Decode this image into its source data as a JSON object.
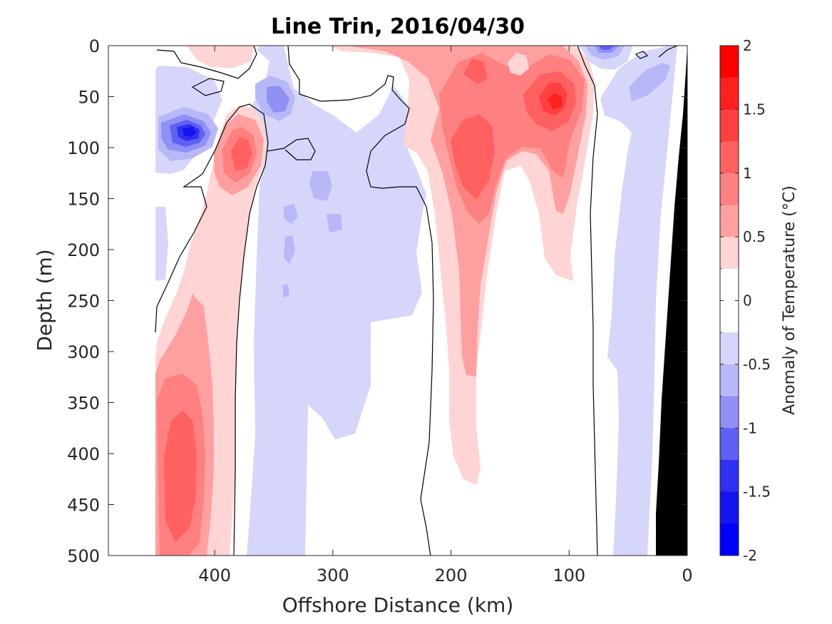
{
  "chart_data": {
    "type": "heatmap",
    "subtype": "filled-contour-section",
    "title": "Line Trin, 2016/04/30",
    "xlabel": "Offshore Distance (km)",
    "ylabel": "Depth (m)",
    "xlim": [
      490,
      0
    ],
    "ylim": [
      0,
      500
    ],
    "x_reversed": true,
    "y_reversed": true,
    "xticks": [
      400,
      300,
      200,
      100,
      0
    ],
    "yticks": [
      0,
      50,
      100,
      150,
      200,
      250,
      300,
      350,
      400,
      450,
      500
    ],
    "xtick_labels": [
      "400",
      "300",
      "200",
      "100",
      "0"
    ],
    "ytick_labels": [
      "0",
      "50",
      "100",
      "150",
      "200",
      "250",
      "300",
      "350",
      "400",
      "450",
      "500"
    ],
    "data_x_range": [
      0,
      452
    ],
    "colorbar": {
      "label": "Anomaly of Temperature (°C)",
      "range": [
        -2,
        2
      ],
      "step": 0.25,
      "ticks": [
        2,
        1.5,
        1,
        0.5,
        0,
        -0.5,
        -1,
        -1.5,
        -2
      ],
      "tick_labels": [
        "2",
        "1.5",
        "1",
        "0.5",
        "0",
        "-0.5",
        "-1",
        "-1.5",
        "-2"
      ],
      "colors_top_to_bottom": [
        "#ff0000",
        "#ff2020",
        "#ff4040",
        "#ff6060",
        "#ff8080",
        "#ffa0a0",
        "#ffd4d4",
        "#ffffff",
        "#ffffff",
        "#d6d6fb",
        "#b8b8f8",
        "#9090f5",
        "#6060f3",
        "#3030f0",
        "#1414ee",
        "#0000ff"
      ]
    },
    "zero_contour_color": "#000000",
    "bathymetry_color": "#000000",
    "features": [
      {
        "kind": "warm",
        "name": "deep offshore warm core",
        "x": 420,
        "depth": 410,
        "value": 0.9
      },
      {
        "kind": "warm",
        "name": "subsurface warm eddy",
        "x": 380,
        "depth": 100,
        "value": 1.0
      },
      {
        "kind": "warm",
        "name": "surface warm tongue",
        "x": 175,
        "depth": 110,
        "value": 1.1
      },
      {
        "kind": "warm",
        "name": "nearshore warm core",
        "x": 112,
        "depth": 60,
        "value": 1.5
      },
      {
        "kind": "warm",
        "name": "surface warm patch",
        "x": 150,
        "depth": 18,
        "value": 0.6
      },
      {
        "kind": "cold",
        "name": "offshore cold core",
        "x": 425,
        "depth": 85,
        "value": -1.4
      },
      {
        "kind": "cold",
        "name": "subsurface cold patch",
        "x": 345,
        "depth": 50,
        "value": -0.8
      },
      {
        "kind": "cold",
        "name": "nearshore surface cold",
        "x": 65,
        "depth": 5,
        "value": -1.0
      },
      {
        "kind": "cold",
        "name": "broad cold column",
        "x": 290,
        "depth": 300,
        "value": -0.4
      }
    ]
  }
}
